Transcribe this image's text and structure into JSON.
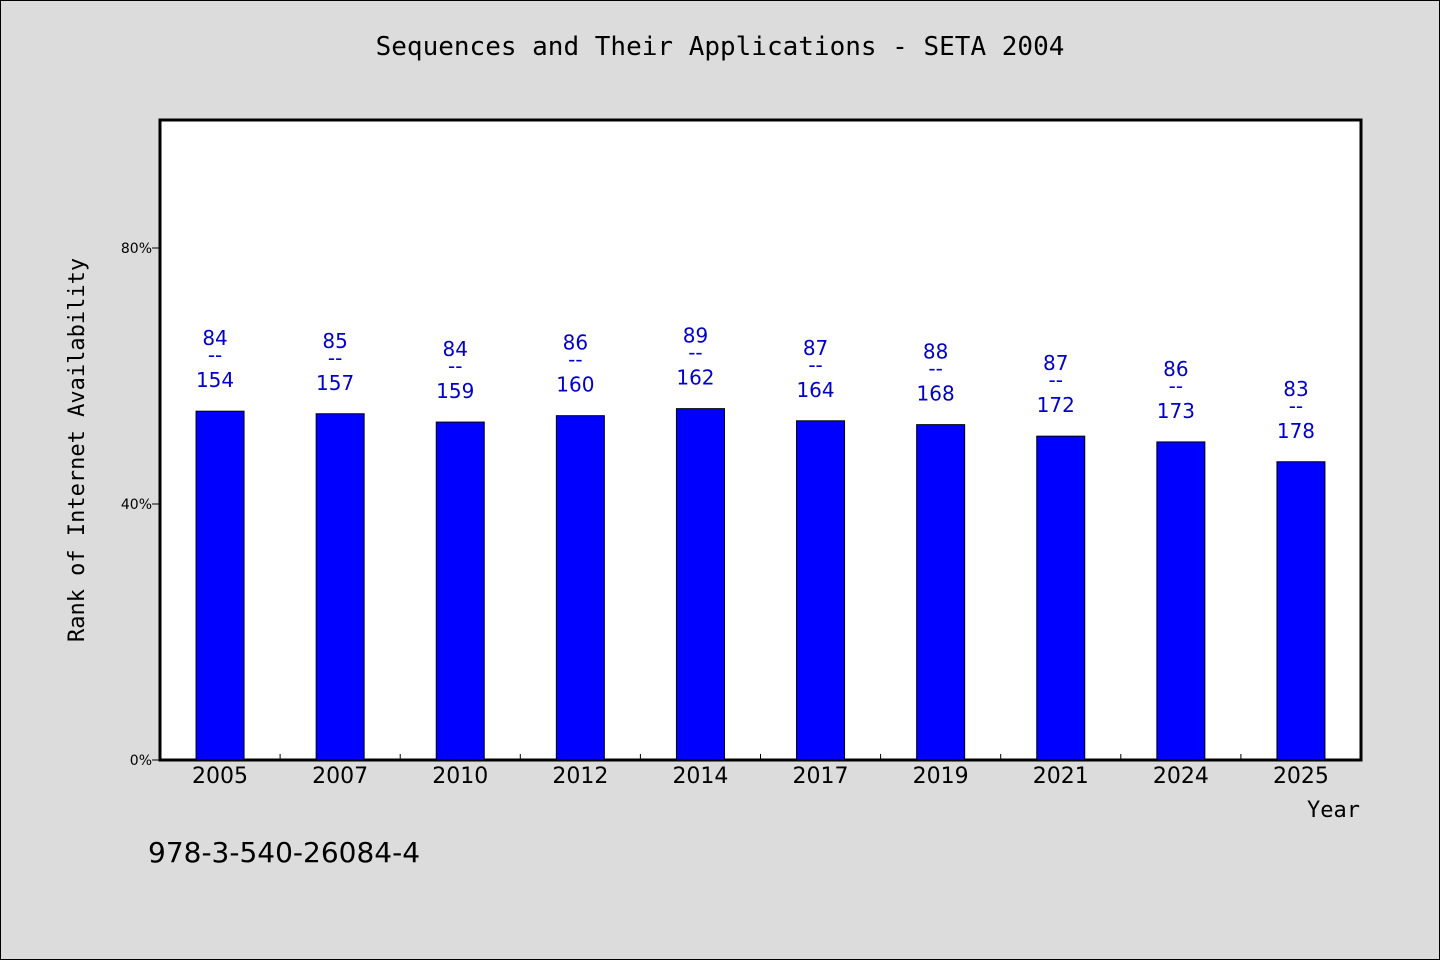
{
  "chart_data": {
    "type": "bar",
    "title": "Sequences and Their Applications - SETA 2004",
    "xlabel": "Year",
    "ylabel": "Rank of Internet Availability",
    "ylim": [
      0,
      100
    ],
    "yticks": [
      {
        "value": 0,
        "label": "0%"
      },
      {
        "value": 40,
        "label": "40%"
      },
      {
        "value": 80,
        "label": "80%"
      }
    ],
    "grid": false,
    "bar_color": "#0000ff",
    "label_color": "#0000cc",
    "categories": [
      "2005",
      "2007",
      "2010",
      "2012",
      "2014",
      "2017",
      "2019",
      "2021",
      "2024",
      "2025"
    ],
    "values": [
      54.5,
      54.1,
      52.8,
      53.8,
      54.9,
      53.0,
      52.4,
      50.6,
      49.7,
      46.6
    ],
    "labels": [
      {
        "top": "84",
        "sep": "--",
        "bottom": "154"
      },
      {
        "top": "85",
        "sep": "--",
        "bottom": "157"
      },
      {
        "top": "84",
        "sep": "--",
        "bottom": "159"
      },
      {
        "top": "86",
        "sep": "--",
        "bottom": "160"
      },
      {
        "top": "89",
        "sep": "--",
        "bottom": "162"
      },
      {
        "top": "87",
        "sep": "--",
        "bottom": "164"
      },
      {
        "top": "88",
        "sep": "--",
        "bottom": "168"
      },
      {
        "top": "87",
        "sep": "--",
        "bottom": "172"
      },
      {
        "top": "86",
        "sep": "--",
        "bottom": "173"
      },
      {
        "top": "83",
        "sep": "--",
        "bottom": "178"
      }
    ]
  },
  "footnote": "978-3-540-26084-4"
}
